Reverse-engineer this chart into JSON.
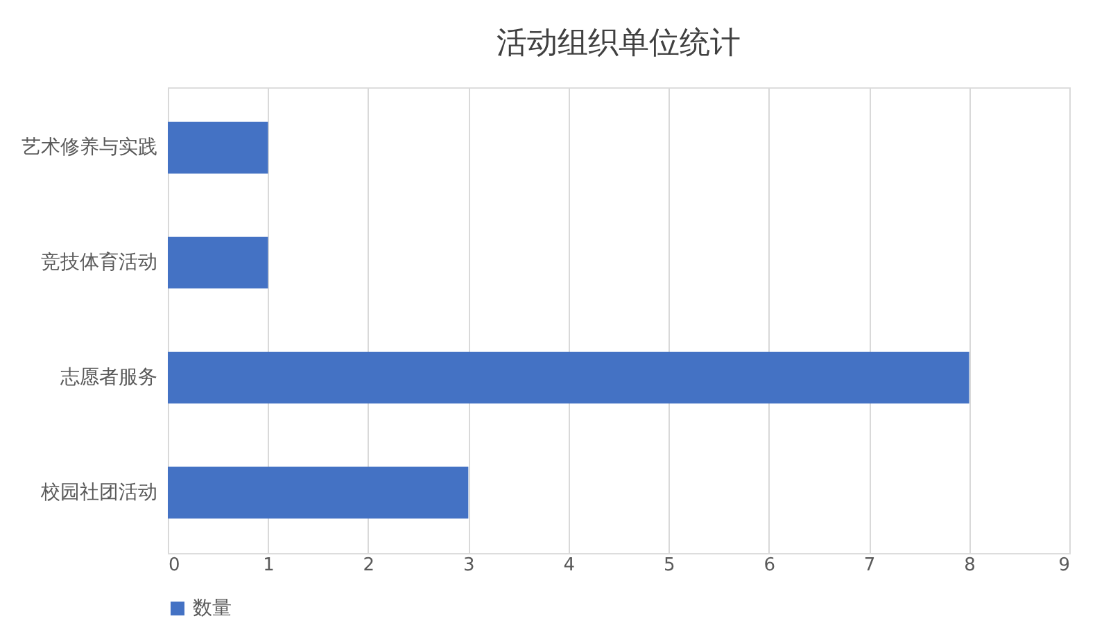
{
  "chart_data": {
    "type": "bar",
    "orientation": "horizontal",
    "title": "活动组织单位统计",
    "categories": [
      "艺术修养与实践",
      "竞技体育活动",
      "志愿者服务",
      "校园社团活动"
    ],
    "series": [
      {
        "name": "数量",
        "color": "#4472c4",
        "values": [
          1,
          1,
          8,
          3
        ]
      }
    ],
    "xlim": [
      0,
      9
    ],
    "xticks": [
      0,
      1,
      2,
      3,
      4,
      5,
      6,
      7,
      8,
      9
    ],
    "grid": "x",
    "legend": "bottom"
  }
}
